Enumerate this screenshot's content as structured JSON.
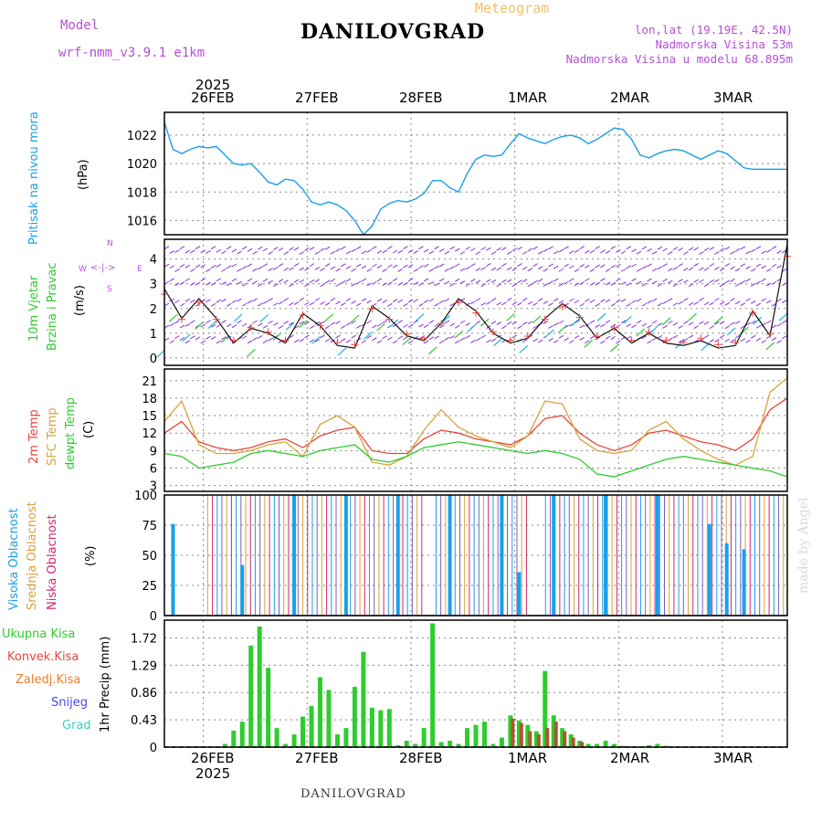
{
  "header": {
    "meteogram_label": "Meteogram",
    "model_label": "Model",
    "model_name": "wrf-nmm_v3.9.1 e1km",
    "station": "DANILOVGRAD",
    "lonlat": "lon,lat (19.19E, 42.5N)",
    "elevation": "Nadmorska Visina 53m",
    "model_elevation": "Nadmorska Visina u modelu 68.895m"
  },
  "time_axis": {
    "year": "2025",
    "days": [
      "26FEB",
      "27FEB",
      "28FEB",
      "1MAR",
      "2MAR",
      "3MAR"
    ]
  },
  "footer": "DANILOVGRAD",
  "watermark": "made by Angel",
  "panels": {
    "pressure": {
      "ylabel": "Pritisak na nivou mora",
      "unit": "(hPa)",
      "ticks": [
        "1016",
        "1018",
        "1020",
        "1022"
      ]
    },
    "wind": {
      "ylabel1": "10m Vjetar",
      "ylabel2": "Brzina i Pravac",
      "unit": "(m/s)",
      "ticks": [
        "0",
        "1",
        "2",
        "3",
        "4"
      ],
      "compass": {
        "n": "N",
        "w": "W",
        "e": "E",
        "s": "S",
        "label": "<-|->"
      }
    },
    "temperature": {
      "labels": [
        "2m Temp",
        "SFC Temp",
        "dewpt Temp"
      ],
      "unit": "(C)",
      "ticks": [
        "3",
        "6",
        "9",
        "12",
        "15",
        "18",
        "21"
      ]
    },
    "clouds": {
      "labels": [
        "Visoka Oblacnost",
        "Srednja Oblacnost",
        "Niska Oblacnost"
      ],
      "unit": "(%)",
      "ticks": [
        "0",
        "25",
        "50",
        "75",
        "100"
      ]
    },
    "precip": {
      "ylabel": "1hr Precip (mm)",
      "ticks": [
        "0",
        "0.43",
        "0.86",
        "1.29",
        "1.72"
      ],
      "legend": [
        "Ukupna Kisa",
        "Konvek.Kisa",
        "Zaledj.Kisa",
        "Snijeg",
        "Grad"
      ]
    }
  },
  "colors": {
    "pressure": "#1aa0e8",
    "temp2m": "#e8463c",
    "sfc": "#d9a23a",
    "dewpt": "#2ecc2e",
    "high_cloud": "#1aa0e8",
    "mid_cloud": "#d9a23a",
    "low_cloud": "#d8236e",
    "rain_total": "#2ecc2e",
    "rain_conv": "#e8463c",
    "freezing_rain": "#f07d28",
    "snow": "#4848e8",
    "hail": "#3ad0c0",
    "wind_purple": "#8a2be2",
    "wind_cyan": "#1ab8e0",
    "wind_green": "#2ecc2e"
  },
  "chart_data": [
    {
      "type": "line",
      "name": "pressure",
      "x_start": "2025-02-25T15:00",
      "hours": [
        0,
        2,
        4,
        6,
        8,
        10,
        12,
        14,
        16,
        18,
        20,
        22,
        24,
        26,
        28,
        30,
        32,
        34,
        36,
        38,
        40,
        42,
        44,
        46,
        48,
        50,
        52,
        54,
        56,
        58,
        60,
        62,
        64,
        66,
        68,
        70,
        72,
        74,
        76,
        78,
        80,
        82,
        84,
        86,
        88,
        90,
        92,
        94,
        96,
        98,
        100,
        102,
        104,
        106,
        108,
        110,
        112,
        114,
        116,
        118,
        120,
        122,
        124,
        126,
        128,
        130,
        132,
        134,
        136,
        138,
        140,
        142,
        144
      ],
      "values": [
        1022.9,
        1021.0,
        1020.7,
        1021.0,
        1021.2,
        1021.1,
        1021.2,
        1020.6,
        1020.0,
        1019.9,
        1020.0,
        1019.4,
        1018.7,
        1018.5,
        1018.9,
        1018.8,
        1018.2,
        1017.3,
        1017.1,
        1017.3,
        1017.1,
        1016.7,
        1016.0,
        1015.0,
        1015.6,
        1016.8,
        1017.2,
        1017.4,
        1017.3,
        1017.5,
        1017.9,
        1018.8,
        1018.8,
        1018.3,
        1018.0,
        1019.3,
        1020.3,
        1020.6,
        1020.5,
        1020.6,
        1021.4,
        1022.1,
        1021.8,
        1021.6,
        1021.4,
        1021.7,
        1021.9,
        1022.0,
        1021.8,
        1021.4,
        1021.7,
        1022.1,
        1022.5,
        1022.4,
        1021.7,
        1020.6,
        1020.4,
        1020.7,
        1020.9,
        1021.0,
        1020.9,
        1020.6,
        1020.3,
        1020.6,
        1020.9,
        1020.7,
        1020.2,
        1019.7,
        1019.6,
        1019.6,
        1019.6,
        1019.6,
        1019.6
      ],
      "ylim": [
        1015,
        1023.6
      ],
      "ylabel": "Pritisak na nivou mora (hPa)"
    },
    {
      "type": "line",
      "name": "wind",
      "hours": [
        0,
        4,
        8,
        12,
        16,
        20,
        24,
        28,
        32,
        36,
        40,
        44,
        48,
        52,
        56,
        60,
        64,
        68,
        72,
        76,
        80,
        84,
        88,
        92,
        96,
        100,
        104,
        108,
        112,
        116,
        120,
        124,
        128,
        132,
        136,
        140,
        144
      ],
      "speed": [
        2.8,
        1.6,
        2.4,
        1.6,
        0.6,
        1.2,
        1.0,
        0.6,
        1.8,
        1.3,
        0.5,
        0.4,
        2.1,
        1.6,
        0.9,
        0.7,
        1.4,
        2.4,
        1.9,
        1.0,
        0.6,
        0.8,
        1.6,
        2.2,
        1.7,
        0.8,
        1.2,
        0.6,
        1.0,
        0.6,
        0.5,
        0.7,
        0.4,
        0.5,
        1.9,
        0.9,
        4.6
      ],
      "ylim": [
        -0.3,
        4.8
      ]
    },
    {
      "type": "line",
      "name": "temperature",
      "hours": [
        0,
        4,
        8,
        12,
        16,
        20,
        24,
        28,
        32,
        36,
        40,
        44,
        48,
        52,
        56,
        60,
        64,
        68,
        72,
        76,
        80,
        84,
        88,
        92,
        96,
        100,
        104,
        108,
        112,
        116,
        120,
        124,
        128,
        132,
        136,
        140,
        144
      ],
      "series": [
        {
          "name": "2m Temp",
          "values": [
            12.0,
            14.0,
            10.5,
            9.5,
            9.0,
            9.5,
            10.5,
            11.0,
            9.5,
            11.5,
            12.5,
            13.0,
            9.0,
            8.5,
            8.5,
            11.0,
            12.5,
            12.0,
            11.0,
            10.5,
            10.0,
            11.5,
            14.5,
            15.0,
            12.0,
            10.0,
            9.0,
            10.0,
            12.0,
            12.5,
            11.5,
            10.5,
            10.0,
            9.0,
            11.0,
            16.0,
            18.0
          ]
        },
        {
          "name": "SFC Temp",
          "values": [
            14.0,
            17.5,
            10.0,
            8.5,
            8.5,
            9.0,
            10.0,
            10.5,
            8.0,
            13.5,
            15.0,
            13.0,
            7.0,
            6.5,
            8.0,
            12.5,
            16.0,
            13.0,
            11.5,
            10.5,
            9.5,
            11.5,
            17.5,
            17.0,
            11.0,
            9.0,
            8.5,
            9.0,
            12.5,
            14.0,
            11.0,
            9.0,
            7.5,
            6.5,
            8.0,
            19.0,
            21.5
          ]
        },
        {
          "name": "dewpt Temp",
          "values": [
            8.5,
            8.0,
            6.0,
            6.5,
            7.0,
            8.5,
            9.0,
            8.5,
            8.0,
            9.0,
            9.5,
            10.0,
            7.5,
            7.0,
            8.0,
            9.5,
            10.0,
            10.5,
            10.0,
            9.5,
            9.0,
            8.5,
            9.0,
            8.5,
            7.5,
            5.0,
            4.5,
            5.5,
            6.5,
            7.5,
            8.0,
            7.5,
            7.0,
            6.5,
            6.0,
            5.5,
            4.5
          ]
        }
      ],
      "ylim": [
        2,
        23
      ]
    },
    {
      "type": "bar",
      "name": "clouds",
      "ylim": [
        0,
        100
      ],
      "high_cloud_hours": [
        2,
        18,
        30,
        42,
        54,
        66,
        78,
        82,
        90,
        102,
        114,
        126,
        130,
        134
      ],
      "high_cloud_values": [
        76,
        42,
        100,
        100,
        100,
        100,
        100,
        36,
        100,
        100,
        100,
        76,
        60,
        55
      ]
    },
    {
      "type": "bar",
      "name": "precip",
      "ylim": [
        0,
        2.0
      ],
      "hours": [
        14,
        16,
        18,
        20,
        22,
        24,
        26,
        28,
        30,
        32,
        34,
        36,
        38,
        40,
        42,
        44,
        46,
        48,
        50,
        52,
        54,
        56,
        58,
        60,
        62,
        64,
        66,
        68,
        70,
        72,
        74,
        76,
        78,
        80,
        82,
        84,
        86,
        88,
        90,
        92,
        94,
        96,
        98,
        100,
        102,
        104,
        106,
        108,
        110,
        112,
        114,
        116,
        118,
        120,
        122,
        124,
        126,
        128,
        130,
        132,
        134,
        136,
        138,
        140,
        142,
        144
      ],
      "total": [
        0.05,
        0.26,
        0.4,
        1.6,
        1.9,
        1.25,
        0.3,
        0.05,
        0.2,
        0.48,
        0.65,
        1.1,
        0.9,
        0.2,
        0.3,
        0.95,
        1.5,
        0.62,
        0.58,
        0.6,
        0.03,
        0.1,
        0.05,
        0.3,
        1.95,
        0.08,
        0.1,
        0.05,
        0.3,
        0.35,
        0.4,
        0.05,
        0.15,
        0.5,
        0.42,
        0.35,
        0.25,
        1.2,
        0.5,
        0.3,
        0.2,
        0.1,
        0.05,
        0.05,
        0.1,
        0.05,
        0.02,
        0.01,
        0.01,
        0.03,
        0.05,
        0.02,
        0.0,
        0.0,
        0.0,
        0.0,
        0.0,
        0.0,
        0.0,
        0.0,
        0.0,
        0.0,
        0.0,
        0.0,
        0.0,
        0.0
      ],
      "convective": [
        0.0,
        0.0,
        0.0,
        0.0,
        0.0,
        0.0,
        0.0,
        0.0,
        0.0,
        0.0,
        0.0,
        0.0,
        0.0,
        0.0,
        0.0,
        0.0,
        0.0,
        0.0,
        0.0,
        0.0,
        0.0,
        0.0,
        0.0,
        0.0,
        0.0,
        0.0,
        0.0,
        0.0,
        0.0,
        0.0,
        0.0,
        0.0,
        0.0,
        0.45,
        0.38,
        0.25,
        0.2,
        0.3,
        0.4,
        0.25,
        0.15,
        0.08,
        0.0,
        0.0,
        0.0,
        0.0,
        0.0,
        0.0,
        0.0,
        0.0,
        0.0,
        0.0,
        0.0,
        0.0,
        0.0,
        0.0,
        0.0,
        0.0,
        0.0,
        0.0,
        0.0,
        0.0,
        0.0,
        0.0,
        0.0,
        0.0
      ]
    }
  ]
}
